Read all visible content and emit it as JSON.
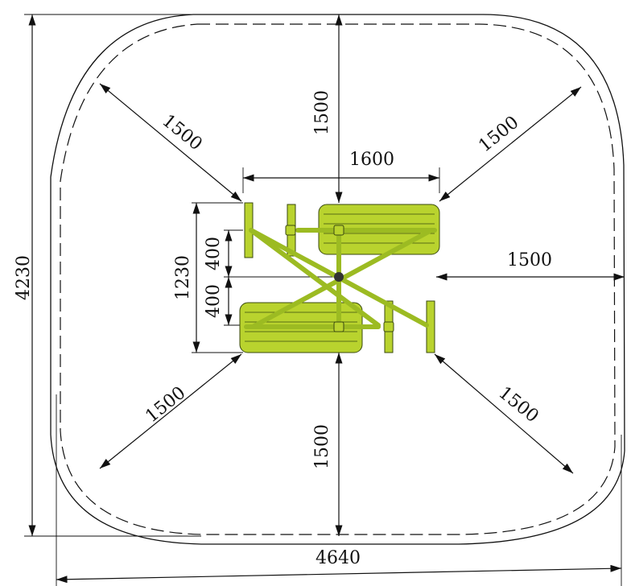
{
  "labels": {
    "overall_height": "4230",
    "overall_width": "4640",
    "clear_top": "1500",
    "clear_bottom": "1500",
    "clear_right": "1500",
    "radius_top_left": "1500",
    "radius_top_right": "1500",
    "radius_bottom_left": "1500",
    "radius_bottom_right": "1500",
    "equipment_width": "1600",
    "equipment_depth": "1230",
    "seat_offset_upper": "400",
    "seat_offset_lower": "400"
  },
  "colors": {
    "equipment": "#b9d32e",
    "lines": "#111111"
  }
}
